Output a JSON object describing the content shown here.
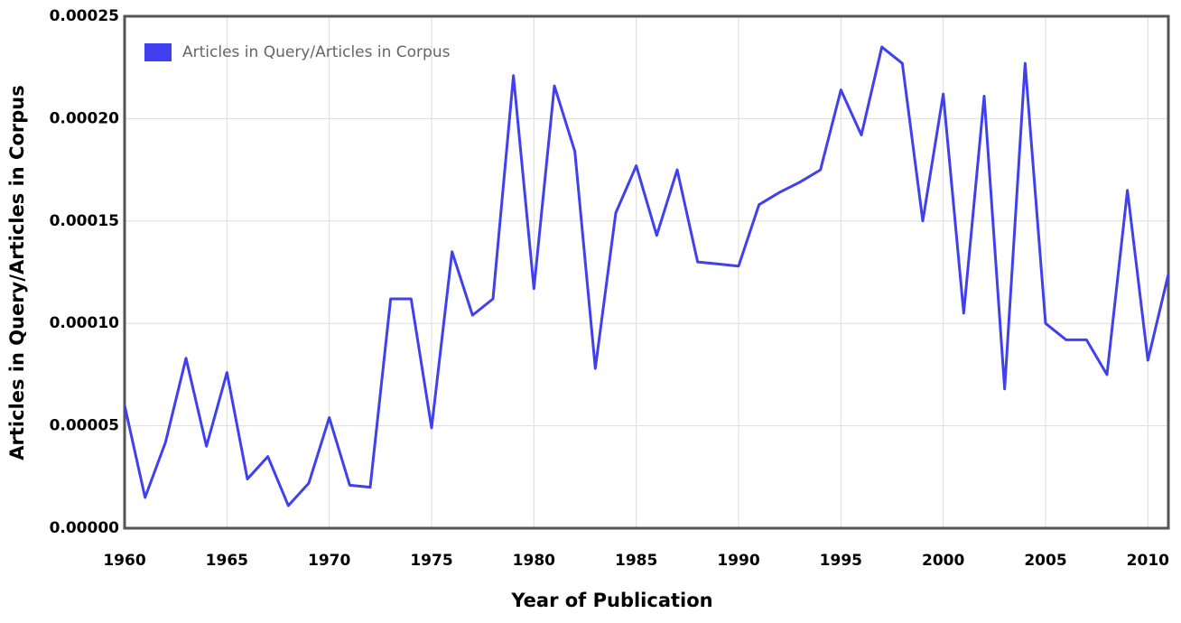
{
  "chart_data": {
    "type": "line",
    "x_label": "Year of Publication",
    "y_label": "Articles in Query/Articles in Corpus",
    "x": [
      1960,
      1961,
      1962,
      1963,
      1964,
      1965,
      1966,
      1967,
      1968,
      1969,
      1970,
      1971,
      1972,
      1973,
      1974,
      1975,
      1976,
      1977,
      1978,
      1979,
      1980,
      1981,
      1982,
      1983,
      1984,
      1985,
      1986,
      1987,
      1988,
      1989,
      1990,
      1991,
      1992,
      1993,
      1994,
      1995,
      1996,
      1997,
      1998,
      1999,
      2000,
      2001,
      2002,
      2003,
      2004,
      2005,
      2006,
      2007,
      2008,
      2009,
      2010,
      2011
    ],
    "series": [
      {
        "name": "Articles in Query/Articles in Corpus",
        "color": "#4040ee",
        "values": [
          6e-05,
          1.5e-05,
          4.2e-05,
          8.3e-05,
          4e-05,
          7.6e-05,
          2.4e-05,
          3.5e-05,
          1.1e-05,
          2.2e-05,
          5.4e-05,
          2.1e-05,
          2e-05,
          0.000112,
          0.000112,
          4.9e-05,
          0.000135,
          0.000104,
          0.000112,
          0.000221,
          0.000117,
          0.000216,
          0.000184,
          7.8e-05,
          0.000154,
          0.000177,
          0.000143,
          0.000175,
          0.00013,
          0.000129,
          0.000128,
          0.000158,
          0.000164,
          0.000169,
          0.000175,
          0.000214,
          0.000192,
          0.000235,
          0.000227,
          0.00015,
          0.000212,
          0.000105,
          0.000211,
          6.8e-05,
          0.000227,
          0.0001,
          9.2e-05,
          9.2e-05,
          7.5e-05,
          0.000165,
          8.2e-05,
          0.000124
        ]
      }
    ],
    "xlim": [
      1960,
      2011
    ],
    "ylim": [
      0,
      0.00025
    ],
    "xticks": [
      1960,
      1965,
      1970,
      1975,
      1980,
      1985,
      1990,
      1995,
      2000,
      2005,
      2010
    ],
    "yticks": [
      {
        "value": 0,
        "label": "0.00000"
      },
      {
        "value": 5e-05,
        "label": "0.00005"
      },
      {
        "value": 0.0001,
        "label": "0.00010"
      },
      {
        "value": 0.00015,
        "label": "0.00015"
      },
      {
        "value": 0.0002,
        "label": "0.00020"
      },
      {
        "value": 0.00025,
        "label": "0.00025"
      }
    ],
    "grid": true,
    "legend": "top-left"
  }
}
